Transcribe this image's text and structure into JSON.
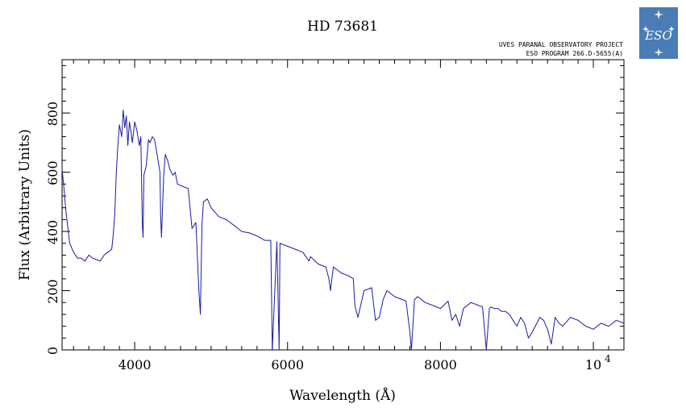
{
  "colors": {
    "accent": "#1a1aa6",
    "logo_bg": "#4a7cb6"
  },
  "header": {
    "project_line1": "UVES PARANAL OBSERVATORY PROJECT",
    "project_line2": "ESO PROGRAM 266.D-5655(A)"
  },
  "logo": {
    "icon": "eso-logo",
    "text": "ESO"
  },
  "chart_data": {
    "type": "line",
    "title": "HD 73681",
    "xlabel": "Wavelength (Å)",
    "ylabel": "Flux (Arbitrary Units)",
    "xlim": [
      3050,
      10400
    ],
    "ylim": [
      0,
      980
    ],
    "x_ticks": [
      {
        "value": 4000,
        "label": "4000"
      },
      {
        "value": 6000,
        "label": "6000"
      },
      {
        "value": 8000,
        "label": "8000"
      },
      {
        "value": 10000,
        "label": "10",
        "exponent": "4"
      }
    ],
    "y_ticks": [
      {
        "value": 0,
        "label": "0"
      },
      {
        "value": 200,
        "label": "200"
      },
      {
        "value": 400,
        "label": "400"
      },
      {
        "value": 600,
        "label": "600"
      },
      {
        "value": 800,
        "label": "800"
      }
    ],
    "grid": false,
    "series": [
      {
        "color": "#1a1aa6",
        "x": [
          3050,
          3070,
          3100,
          3150,
          3200,
          3250,
          3300,
          3350,
          3400,
          3450,
          3500,
          3550,
          3600,
          3650,
          3700,
          3720,
          3740,
          3760,
          3780,
          3800,
          3830,
          3850,
          3870,
          3890,
          3910,
          3930,
          3950,
          3970,
          4000,
          4030,
          4060,
          4080,
          4100,
          4110,
          4120,
          4150,
          4180,
          4200,
          4230,
          4260,
          4300,
          4330,
          4340,
          4350,
          4380,
          4400,
          4430,
          4460,
          4480,
          4500,
          4530,
          4560,
          4600,
          4650,
          4700,
          4750,
          4800,
          4840,
          4860,
          4880,
          4900,
          4950,
          5000,
          5100,
          5200,
          5300,
          5400,
          5500,
          5600,
          5700,
          5780,
          5800,
          5860,
          5890,
          5900,
          6000,
          6100,
          6200,
          6280,
          6300,
          6400,
          6500,
          6540,
          6563,
          6580,
          6600,
          6700,
          6800,
          6860,
          6880,
          6920,
          7000,
          7100,
          7150,
          7200,
          7250,
          7300,
          7400,
          7550,
          7600,
          7620,
          7660,
          7700,
          7800,
          7900,
          8000,
          8100,
          8150,
          8200,
          8250,
          8300,
          8400,
          8500,
          8550,
          8600,
          8640,
          8660,
          8700,
          8750,
          8800,
          8850,
          8900,
          8950,
          9000,
          9050,
          9100,
          9150,
          9200,
          9300,
          9350,
          9400,
          9450,
          9500,
          9550,
          9600,
          9700,
          9800,
          9900,
          10000,
          10100,
          10200,
          10300,
          10400
        ],
        "y": [
          610,
          560,
          470,
          360,
          330,
          310,
          310,
          300,
          320,
          310,
          305,
          300,
          320,
          330,
          340,
          390,
          460,
          600,
          690,
          760,
          720,
          810,
          750,
          790,
          690,
          770,
          740,
          700,
          770,
          740,
          690,
          720,
          420,
          380,
          590,
          620,
          710,
          700,
          720,
          710,
          650,
          600,
          450,
          380,
          590,
          660,
          640,
          610,
          600,
          590,
          600,
          560,
          555,
          550,
          545,
          410,
          430,
          200,
          120,
          420,
          500,
          510,
          480,
          450,
          440,
          420,
          400,
          395,
          385,
          370,
          370,
          0,
          365,
          0,
          360,
          350,
          340,
          330,
          300,
          315,
          290,
          280,
          240,
          200,
          240,
          280,
          260,
          250,
          240,
          150,
          110,
          200,
          210,
          100,
          110,
          170,
          200,
          180,
          165,
          60,
          0,
          170,
          180,
          160,
          150,
          140,
          165,
          100,
          120,
          80,
          140,
          160,
          150,
          145,
          0,
          140,
          145,
          140,
          140,
          130,
          130,
          120,
          100,
          80,
          110,
          90,
          40,
          60,
          110,
          100,
          70,
          20,
          110,
          90,
          80,
          110,
          100,
          80,
          70,
          90,
          80,
          100,
          90
        ]
      }
    ]
  }
}
